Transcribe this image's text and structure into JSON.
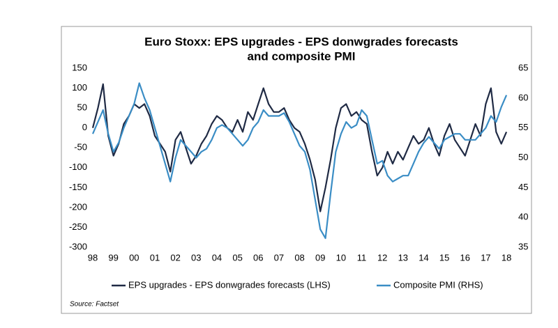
{
  "chart_data": {
    "type": "line",
    "title": [
      "Euro Stoxx: EPS upgrades - EPS donwgrades forecasts",
      "and composite PMI"
    ],
    "source": "Source: Factset",
    "x": [
      1998.0,
      1998.25,
      1998.5,
      1998.75,
      1999.0,
      1999.25,
      1999.5,
      1999.75,
      2000.0,
      2000.25,
      2000.5,
      2000.75,
      2001.0,
      2001.25,
      2001.5,
      2001.75,
      2002.0,
      2002.25,
      2002.5,
      2002.75,
      2003.0,
      2003.25,
      2003.5,
      2003.75,
      2004.0,
      2004.25,
      2004.5,
      2004.75,
      2005.0,
      2005.25,
      2005.5,
      2005.75,
      2006.0,
      2006.25,
      2006.5,
      2006.75,
      2007.0,
      2007.25,
      2007.5,
      2007.75,
      2008.0,
      2008.25,
      2008.5,
      2008.75,
      2009.0,
      2009.25,
      2009.5,
      2009.75,
      2010.0,
      2010.25,
      2010.5,
      2010.75,
      2011.0,
      2011.25,
      2011.5,
      2011.75,
      2012.0,
      2012.25,
      2012.5,
      2012.75,
      2013.0,
      2013.25,
      2013.5,
      2013.75,
      2014.0,
      2014.25,
      2014.5,
      2014.75,
      2015.0,
      2015.25,
      2015.5,
      2015.75,
      2016.0,
      2016.25,
      2016.5,
      2016.75,
      2017.0,
      2017.25,
      2017.5,
      2017.75,
      2018.0
    ],
    "series": [
      {
        "name": "EPS upgrades - EPS donwgrades forecasts (LHS)",
        "color": "#1f2a44",
        "values": [
          0,
          50,
          110,
          -20,
          -70,
          -40,
          10,
          30,
          60,
          50,
          60,
          30,
          -20,
          -40,
          -60,
          -110,
          -30,
          -10,
          -50,
          -90,
          -70,
          -40,
          -20,
          10,
          30,
          20,
          0,
          -10,
          20,
          -10,
          40,
          20,
          60,
          100,
          60,
          40,
          40,
          50,
          20,
          0,
          -10,
          -40,
          -80,
          -130,
          -210,
          -150,
          -80,
          0,
          50,
          60,
          30,
          40,
          20,
          10,
          -60,
          -120,
          -100,
          -60,
          -90,
          -60,
          -80,
          -50,
          -20,
          -40,
          -30,
          0,
          -40,
          -70,
          -20,
          10,
          -30,
          -50,
          -70,
          -30,
          10,
          -20,
          60,
          100,
          -10,
          -40,
          -10
        ]
      },
      {
        "name": "Composite PMI (RHS)",
        "color": "#3a8dc5",
        "axis": "y2",
        "values": [
          54,
          56,
          58,
          54,
          51,
          52.5,
          55,
          57,
          59,
          62.5,
          60,
          58,
          55,
          52,
          49,
          46,
          50,
          53,
          52,
          51,
          50,
          51,
          51.5,
          53,
          55,
          55.5,
          55,
          54,
          53,
          52,
          53,
          55,
          56,
          58,
          57,
          57,
          57,
          57.5,
          56,
          54,
          52,
          51,
          48,
          43,
          38,
          36.5,
          44,
          51,
          54,
          56,
          55,
          55.5,
          58,
          57,
          53,
          49,
          49.5,
          47,
          46,
          46.5,
          47,
          47,
          49,
          51,
          52.5,
          53.5,
          52.5,
          51.5,
          53,
          53.5,
          54,
          54,
          53,
          53,
          53,
          54,
          55,
          57,
          56,
          58.5,
          60.5
        ]
      }
    ],
    "xlim": [
      1998,
      2018.3
    ],
    "xticks": [
      {
        "value": 1998,
        "label": "98"
      },
      {
        "value": 1999,
        "label": "99"
      },
      {
        "value": 2000,
        "label": "00"
      },
      {
        "value": 2001,
        "label": "01"
      },
      {
        "value": 2002,
        "label": "02"
      },
      {
        "value": 2003,
        "label": "03"
      },
      {
        "value": 2004,
        "label": "04"
      },
      {
        "value": 2005,
        "label": "05"
      },
      {
        "value": 2006,
        "label": "06"
      },
      {
        "value": 2007,
        "label": "07"
      },
      {
        "value": 2008,
        "label": "08"
      },
      {
        "value": 2009,
        "label": "09"
      },
      {
        "value": 2010,
        "label": "10"
      },
      {
        "value": 2011,
        "label": "11"
      },
      {
        "value": 2012,
        "label": "12"
      },
      {
        "value": 2013,
        "label": "13"
      },
      {
        "value": 2014,
        "label": "14"
      },
      {
        "value": 2015,
        "label": "15"
      },
      {
        "value": 2016,
        "label": "16"
      },
      {
        "value": 2017,
        "label": "17"
      },
      {
        "value": 2018,
        "label": "18"
      }
    ],
    "ylim": [
      -300,
      150
    ],
    "yticks": [
      150,
      100,
      50,
      0,
      -50,
      -100,
      -150,
      -200,
      -250,
      -300
    ],
    "y2lim": [
      35,
      65
    ],
    "y2ticks": [
      65,
      60,
      55,
      50,
      45,
      40,
      35
    ],
    "grid": false,
    "legend": "bottom"
  }
}
